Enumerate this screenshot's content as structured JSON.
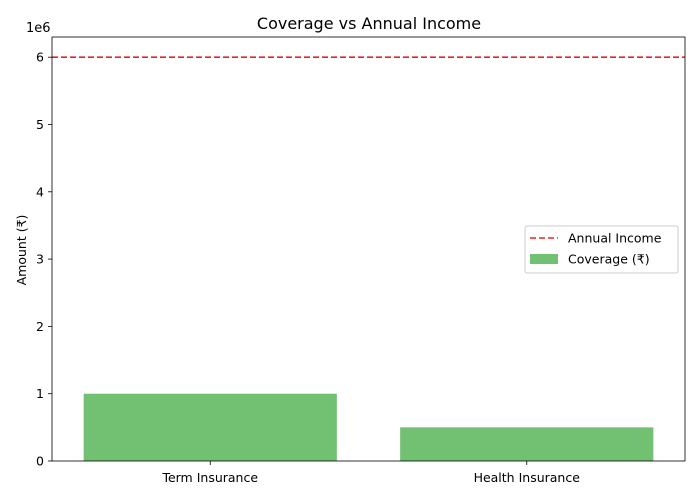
{
  "chart_data": {
    "type": "bar",
    "title": "Coverage vs Annual Income",
    "xlabel": "",
    "ylabel": "Amount (₹)",
    "offset_label": "1e6",
    "categories": [
      "Term Insurance",
      "Health Insurance"
    ],
    "series": [
      {
        "name": "Coverage (₹)",
        "values": [
          1000000,
          500000
        ],
        "color": "#72c172"
      }
    ],
    "reference_lines": [
      {
        "name": "Annual Income",
        "y": 6000000,
        "color": "#e8252a",
        "style": "dashed"
      }
    ],
    "ylim": [
      0,
      6300000
    ],
    "yticks": [
      0,
      1000000,
      2000000,
      3000000,
      4000000,
      5000000,
      6000000
    ],
    "ytick_labels": [
      "0",
      "1",
      "2",
      "3",
      "4",
      "5",
      "6"
    ],
    "grid": false,
    "legend_position": "center-right",
    "legend": [
      {
        "label": "Annual Income",
        "kind": "dashed-line",
        "color": "#e8252a"
      },
      {
        "label": "Coverage (₹)",
        "kind": "patch",
        "color": "#72c172"
      }
    ]
  }
}
